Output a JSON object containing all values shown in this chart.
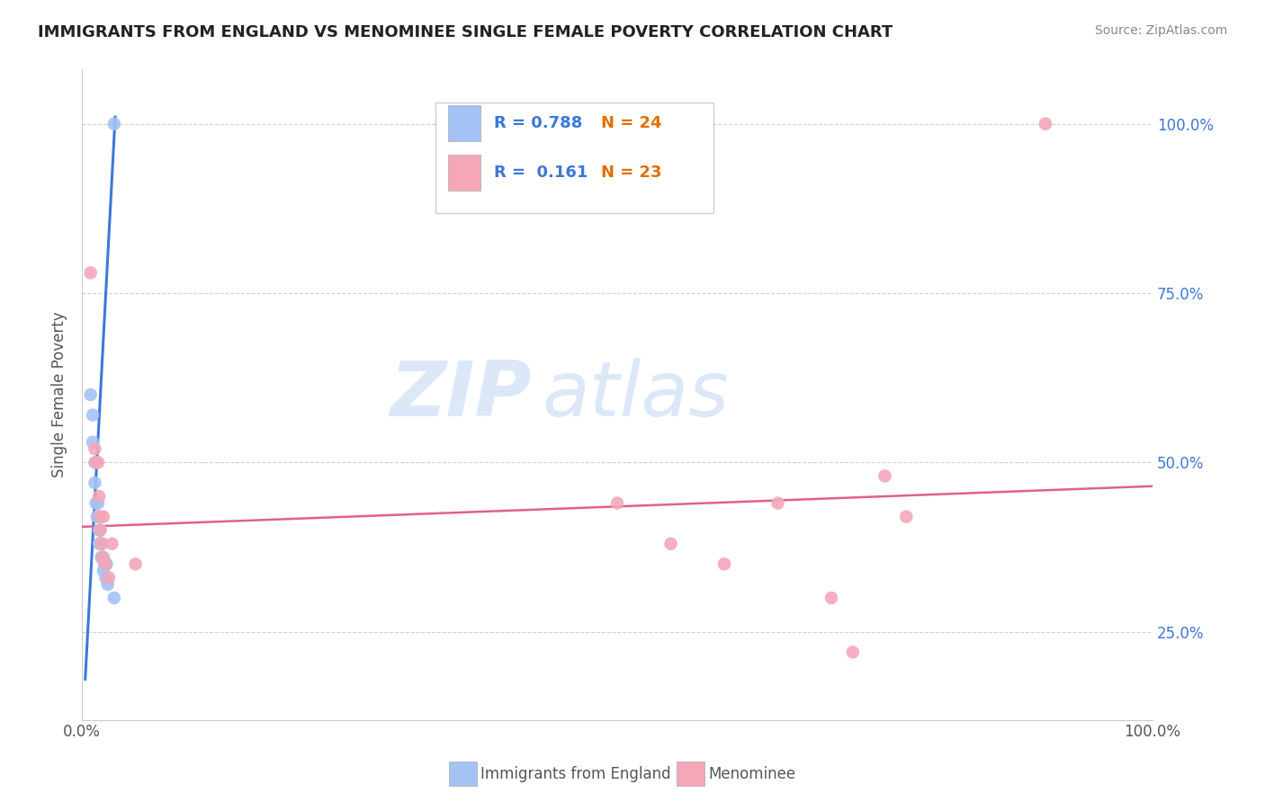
{
  "title": "IMMIGRANTS FROM ENGLAND VS MENOMINEE SINGLE FEMALE POVERTY CORRELATION CHART",
  "source": "Source: ZipAtlas.com",
  "ylabel": "Single Female Poverty",
  "legend_label1": "Immigrants from England",
  "legend_label2": "Menominee",
  "R1": "0.788",
  "N1": "24",
  "R2": "0.161",
  "N2": "23",
  "blue_color": "#a4c2f4",
  "pink_color": "#f4a7b9",
  "blue_line_color": "#3d78d8",
  "pink_line_color": "#e06090",
  "blue_scatter": [
    [
      0.008,
      0.6
    ],
    [
      0.01,
      0.57
    ],
    [
      0.01,
      0.53
    ],
    [
      0.012,
      0.5
    ],
    [
      0.012,
      0.47
    ],
    [
      0.013,
      0.44
    ],
    [
      0.014,
      0.42
    ],
    [
      0.015,
      0.44
    ],
    [
      0.015,
      0.42
    ],
    [
      0.016,
      0.4
    ],
    [
      0.016,
      0.38
    ],
    [
      0.017,
      0.4
    ],
    [
      0.018,
      0.38
    ],
    [
      0.018,
      0.36
    ],
    [
      0.019,
      0.38
    ],
    [
      0.019,
      0.36
    ],
    [
      0.02,
      0.36
    ],
    [
      0.02,
      0.34
    ],
    [
      0.021,
      0.35
    ],
    [
      0.022,
      0.33
    ],
    [
      0.023,
      0.35
    ],
    [
      0.024,
      0.32
    ],
    [
      0.03,
      0.3
    ],
    [
      0.03,
      1.0
    ]
  ],
  "pink_scatter": [
    [
      0.008,
      0.78
    ],
    [
      0.012,
      0.52
    ],
    [
      0.013,
      0.5
    ],
    [
      0.015,
      0.5
    ],
    [
      0.016,
      0.45
    ],
    [
      0.017,
      0.42
    ],
    [
      0.017,
      0.4
    ],
    [
      0.018,
      0.38
    ],
    [
      0.019,
      0.36
    ],
    [
      0.02,
      0.42
    ],
    [
      0.022,
      0.35
    ],
    [
      0.025,
      0.33
    ],
    [
      0.028,
      0.38
    ],
    [
      0.05,
      0.35
    ],
    [
      0.5,
      0.44
    ],
    [
      0.55,
      0.38
    ],
    [
      0.6,
      0.35
    ],
    [
      0.65,
      0.44
    ],
    [
      0.7,
      0.3
    ],
    [
      0.72,
      0.22
    ],
    [
      0.75,
      0.48
    ],
    [
      0.77,
      0.42
    ],
    [
      0.9,
      1.0
    ]
  ],
  "blue_line_pts": [
    [
      0.003,
      0.18
    ],
    [
      0.031,
      1.01
    ]
  ],
  "pink_line_pts": [
    [
      0.0,
      0.405
    ],
    [
      1.0,
      0.465
    ]
  ],
  "xlim": [
    0.0,
    1.0
  ],
  "ylim": [
    0.12,
    1.08
  ],
  "xticks": [
    0.0,
    0.25,
    0.5,
    0.75,
    1.0
  ],
  "xtick_labels": [
    "0.0%",
    "",
    "",
    "",
    "100.0%"
  ],
  "yticks": [
    0.25,
    0.5,
    0.75,
    1.0
  ],
  "ytick_labels_right": [
    "25.0%",
    "50.0%",
    "75.0%",
    "100.0%"
  ],
  "grid_color": "#cccccc",
  "background_color": "#ffffff",
  "watermark_zip": "ZIP",
  "watermark_atlas": "atlas",
  "watermark_color": "#dce8f8",
  "title_color": "#222222",
  "source_color": "#888888",
  "label_color": "#3d78d8",
  "axis_label_color": "#555555"
}
